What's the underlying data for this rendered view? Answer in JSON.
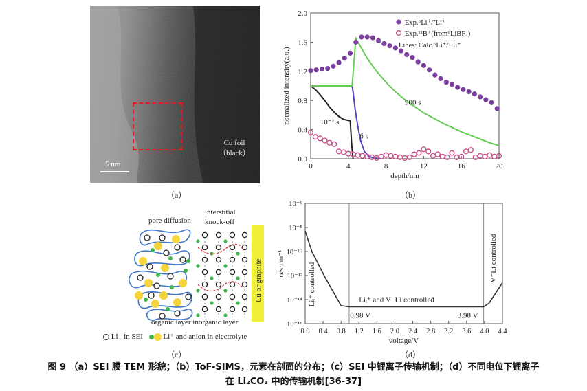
{
  "panel_a": {
    "label": "（a）",
    "foil_label_line1": "Cu foil",
    "foil_label_line2": "（black）",
    "scale_bar": "5 nm"
  },
  "panel_b": {
    "label": "（b）",
    "annotations": [
      "10⁻⁷ s",
      "6 s",
      "900 s"
    ],
    "chart_data": {
      "type": "scatter",
      "xlabel": "depth/nm",
      "ylabel": "normalized intensity(a.u.)",
      "xlim": [
        0,
        20
      ],
      "ylim": [
        0,
        2.0
      ],
      "xticks": [
        0,
        4,
        8,
        12,
        16,
        20
      ],
      "yticks": [
        "0.0",
        "0.4",
        "0.8",
        "1.2",
        "1.6",
        "2.0"
      ],
      "legend": [
        "Exp.⁶Li⁺/⁷Li⁺",
        "Exp.¹¹B⁺(from⁶LiBF₄)",
        "Lines: Calc.⁶Li⁺/⁷Li⁺"
      ],
      "legend_position": "top-right",
      "series": [
        {
          "name": "Exp.⁶Li⁺/⁷Li⁺",
          "color": "#7b3fa0",
          "marker": "filled-circle",
          "x": [
            0,
            0.6,
            1.2,
            1.8,
            2.4,
            3.0,
            3.6,
            4.2,
            4.8,
            5.4,
            6.0,
            6.6,
            7.2,
            7.8,
            8.4,
            9.0,
            9.6,
            10.2,
            10.8,
            11.4,
            12.0,
            12.6,
            13.2,
            13.8,
            14.4,
            15.0,
            15.6,
            16.2,
            16.8,
            17.4,
            18.0,
            18.6,
            19.2,
            19.8
          ],
          "y": [
            1.21,
            1.22,
            1.23,
            1.24,
            1.27,
            1.32,
            1.38,
            1.45,
            1.6,
            1.67,
            1.67,
            1.66,
            1.62,
            1.58,
            1.55,
            1.52,
            1.48,
            1.43,
            1.39,
            1.33,
            1.28,
            1.22,
            1.15,
            1.1,
            1.05,
            1.02,
            0.98,
            0.95,
            0.92,
            0.89,
            0.85,
            0.81,
            0.77,
            0.69
          ]
        },
        {
          "name": "Exp.¹¹B⁺(from⁶LiBF₄)",
          "color": "#c8508a",
          "marker": "open-circle",
          "x": [
            0,
            0.5,
            1.0,
            1.5,
            2.0,
            2.5,
            3.0,
            3.5,
            4.0,
            4.5,
            5.0,
            5.5,
            6.0,
            6.5,
            7.0,
            7.5,
            8.0,
            8.5,
            9.0,
            9.5,
            10.0,
            10.5,
            11.0,
            11.5,
            12.0,
            12.5,
            13.0,
            13.5,
            14.0,
            14.5,
            15.0,
            15.5,
            16.0,
            16.5,
            17.0,
            17.5,
            18.0,
            18.5,
            19.0,
            19.5,
            20.0
          ],
          "y": [
            0.36,
            0.3,
            0.28,
            0.25,
            0.22,
            0.2,
            0.1,
            0.09,
            0.07,
            0.06,
            0.05,
            0.04,
            0.03,
            0.02,
            0.01,
            0.03,
            0.05,
            0.04,
            0.03,
            0.02,
            0.01,
            0.02,
            0.06,
            0.08,
            0.13,
            0.1,
            0.04,
            0.06,
            0.03,
            0.02,
            0.08,
            0.02,
            0.03,
            0.1,
            0.12,
            0.02,
            0.04,
            0.03,
            0.05,
            0.03,
            0.04
          ]
        },
        {
          "name": "10⁻⁷ s",
          "color": "#222222",
          "marker": "line",
          "x": [
            0,
            0.5,
            1,
            1.5,
            2,
            2.5,
            3,
            3.5,
            4.2,
            4.35,
            4.5
          ],
          "y": [
            1.0,
            0.95,
            0.88,
            0.8,
            0.71,
            0.64,
            0.58,
            0.54,
            0.52,
            0.2,
            0.0
          ]
        },
        {
          "name": "6 s",
          "color": "#5a3fbf",
          "marker": "line",
          "x": [
            4.4,
            4.5,
            4.7,
            5.0,
            5.3,
            5.7,
            6.2,
            6.8,
            7.5
          ],
          "y": [
            1.0,
            0.92,
            0.7,
            0.45,
            0.25,
            0.1,
            0.03,
            0.01,
            0.0
          ]
        },
        {
          "name": "900 s",
          "color": "#66cc55",
          "marker": "line",
          "x": [
            0,
            2,
            4.4,
            4.8,
            6,
            7,
            8,
            9,
            10,
            11,
            12,
            13,
            14,
            15,
            16,
            17,
            18,
            19,
            20
          ],
          "y": [
            1.0,
            1.0,
            1.0,
            1.65,
            1.38,
            1.2,
            1.05,
            0.92,
            0.81,
            0.72,
            0.63,
            0.56,
            0.49,
            0.43,
            0.37,
            0.32,
            0.27,
            0.22,
            0.18
          ]
        }
      ]
    }
  },
  "panel_c": {
    "label": "（c）",
    "title_pore": "pore diffusion",
    "title_interstitial_1": "interstitial",
    "title_interstitial_2": "knock-off",
    "side_label": "Cu or graphite",
    "layers_label": "organic layer inorganic layer",
    "legend_li": "Li⁺ in  SEI",
    "legend_anion": "Li⁺ and anion in electrolyte"
  },
  "panel_d": {
    "label": "（d）",
    "annotations": {
      "left_controlled": "Liᵢ⁺ controlled",
      "middle_controlled": "Liᵢ⁺ and V⁻Li  controlled",
      "right_controlled": "V⁻Li controlled",
      "v1": "0.98 V",
      "v2": "3.98  V"
    },
    "chart_data": {
      "type": "line",
      "xlabel": "voltage/V",
      "ylabel": "σ/s·cm⁻¹",
      "xlim": [
        0,
        4.4
      ],
      "ylim_log10": [
        -16,
        -6
      ],
      "log_scale_y": true,
      "xticks": [
        "0.0",
        "0.4",
        "0.8",
        "1.2",
        "1.6",
        "2.0",
        "2.4",
        "2.8",
        "3.2",
        "3.6",
        "4.0",
        "4.4"
      ],
      "yticks": [
        "10⁻¹⁶",
        "10⁻¹⁴",
        "10⁻¹²",
        "10⁻¹⁰",
        "10⁻⁸",
        "10⁻⁶"
      ],
      "vlines": [
        0.98,
        3.98
      ],
      "series": [
        {
          "name": "σ",
          "color": "#333333",
          "x": [
            0.0,
            0.15,
            0.45,
            0.8,
            0.98,
            3.98,
            4.1,
            4.4
          ],
          "y_log10": [
            -8.3,
            -10.0,
            -12.2,
            -14.5,
            -14.6,
            -14.6,
            -14.3,
            -12.6
          ]
        }
      ]
    }
  },
  "caption": {
    "line1": "图 9 （a）SEI 膜 TEM 形貌；（b）ToF-SIMS，元素在剖面的分布；（c）SEI 中锂离子传输机制；（d）不同电位下锂离子",
    "line2": "在 Li₂CO₃ 中的传输机制[36-37]"
  }
}
